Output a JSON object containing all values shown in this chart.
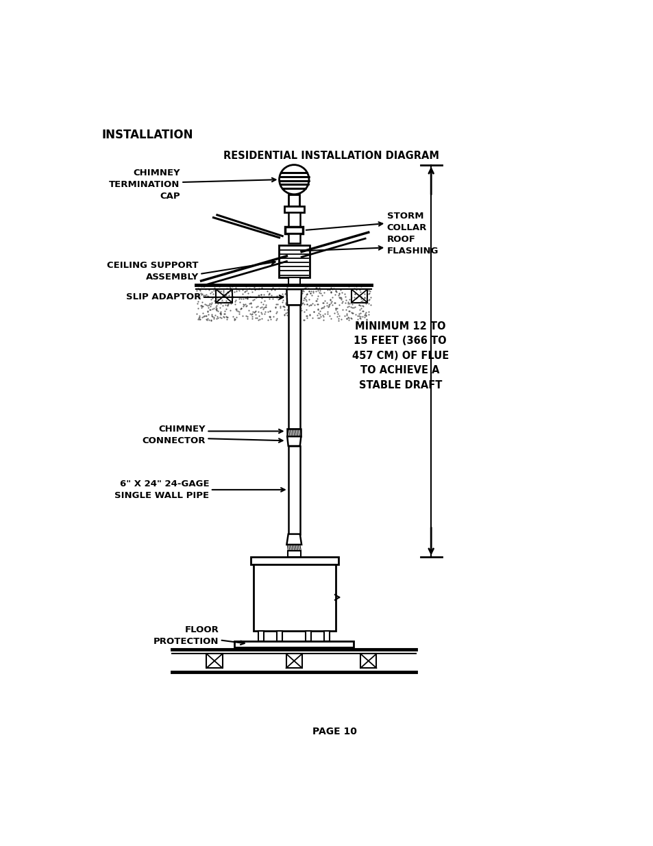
{
  "title": "RESIDENTIAL INSTALLATION DIAGRAM",
  "header": "INSTALLATION",
  "page": "PAGE 10",
  "bg_color": "#ffffff",
  "line_color": "#000000",
  "labels": {
    "chimney_termination_cap": "CHIMNEY\nTERMINATION\nCAP",
    "storm_collar": "STORM\nCOLLAR",
    "roof_flashing": "ROOF\nFLASHING",
    "ceiling_support": "CEILING SUPPORT\nASSEMBLY",
    "slip_adaptor": "SLIP ADAPTOR",
    "min_flue": "MINIMUM 12 TO\n15 FEET (366 TO\n457 CM) OF FLUE\nTO ACHIEVE A\nSTABLE DRAFT",
    "chimney_connector": "CHIMNEY\nCONNECTOR",
    "single_wall_pipe": "6\" X 24\" 24-GAGE\nSINGLE WALL PIPE",
    "floor_protection": "FLOOR\nPROTECTION"
  }
}
